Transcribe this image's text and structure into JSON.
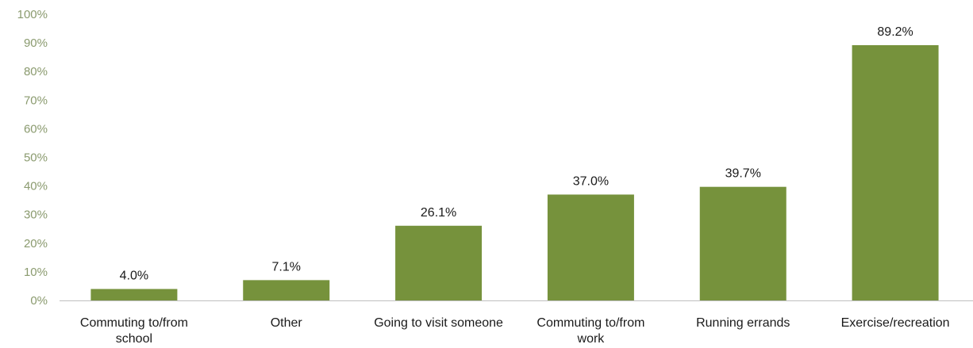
{
  "chart_data": {
    "type": "bar",
    "categories": [
      [
        "Commuting to/from",
        "school"
      ],
      [
        "Other"
      ],
      [
        "Going to visit someone"
      ],
      [
        "Commuting to/from",
        "work"
      ],
      [
        "Running errands"
      ],
      [
        "Exercise/recreation"
      ]
    ],
    "values": [
      4.0,
      7.1,
      26.1,
      37.0,
      39.7,
      89.2
    ],
    "data_labels": [
      "4.0%",
      "7.1%",
      "26.1%",
      "37.0%",
      "39.7%",
      "89.2%"
    ],
    "yticks": [
      "0%",
      "10%",
      "20%",
      "30%",
      "40%",
      "50%",
      "60%",
      "70%",
      "80%",
      "90%",
      "100%"
    ],
    "ylim": [
      0,
      100
    ],
    "title": "",
    "xlabel": "",
    "ylabel": "",
    "grid": false,
    "legend": "none",
    "colors": {
      "bar": "#76923c",
      "axis": "#bfbfbf",
      "ytick_text": "#8a9a6e",
      "text": "#1a1a1a"
    }
  }
}
